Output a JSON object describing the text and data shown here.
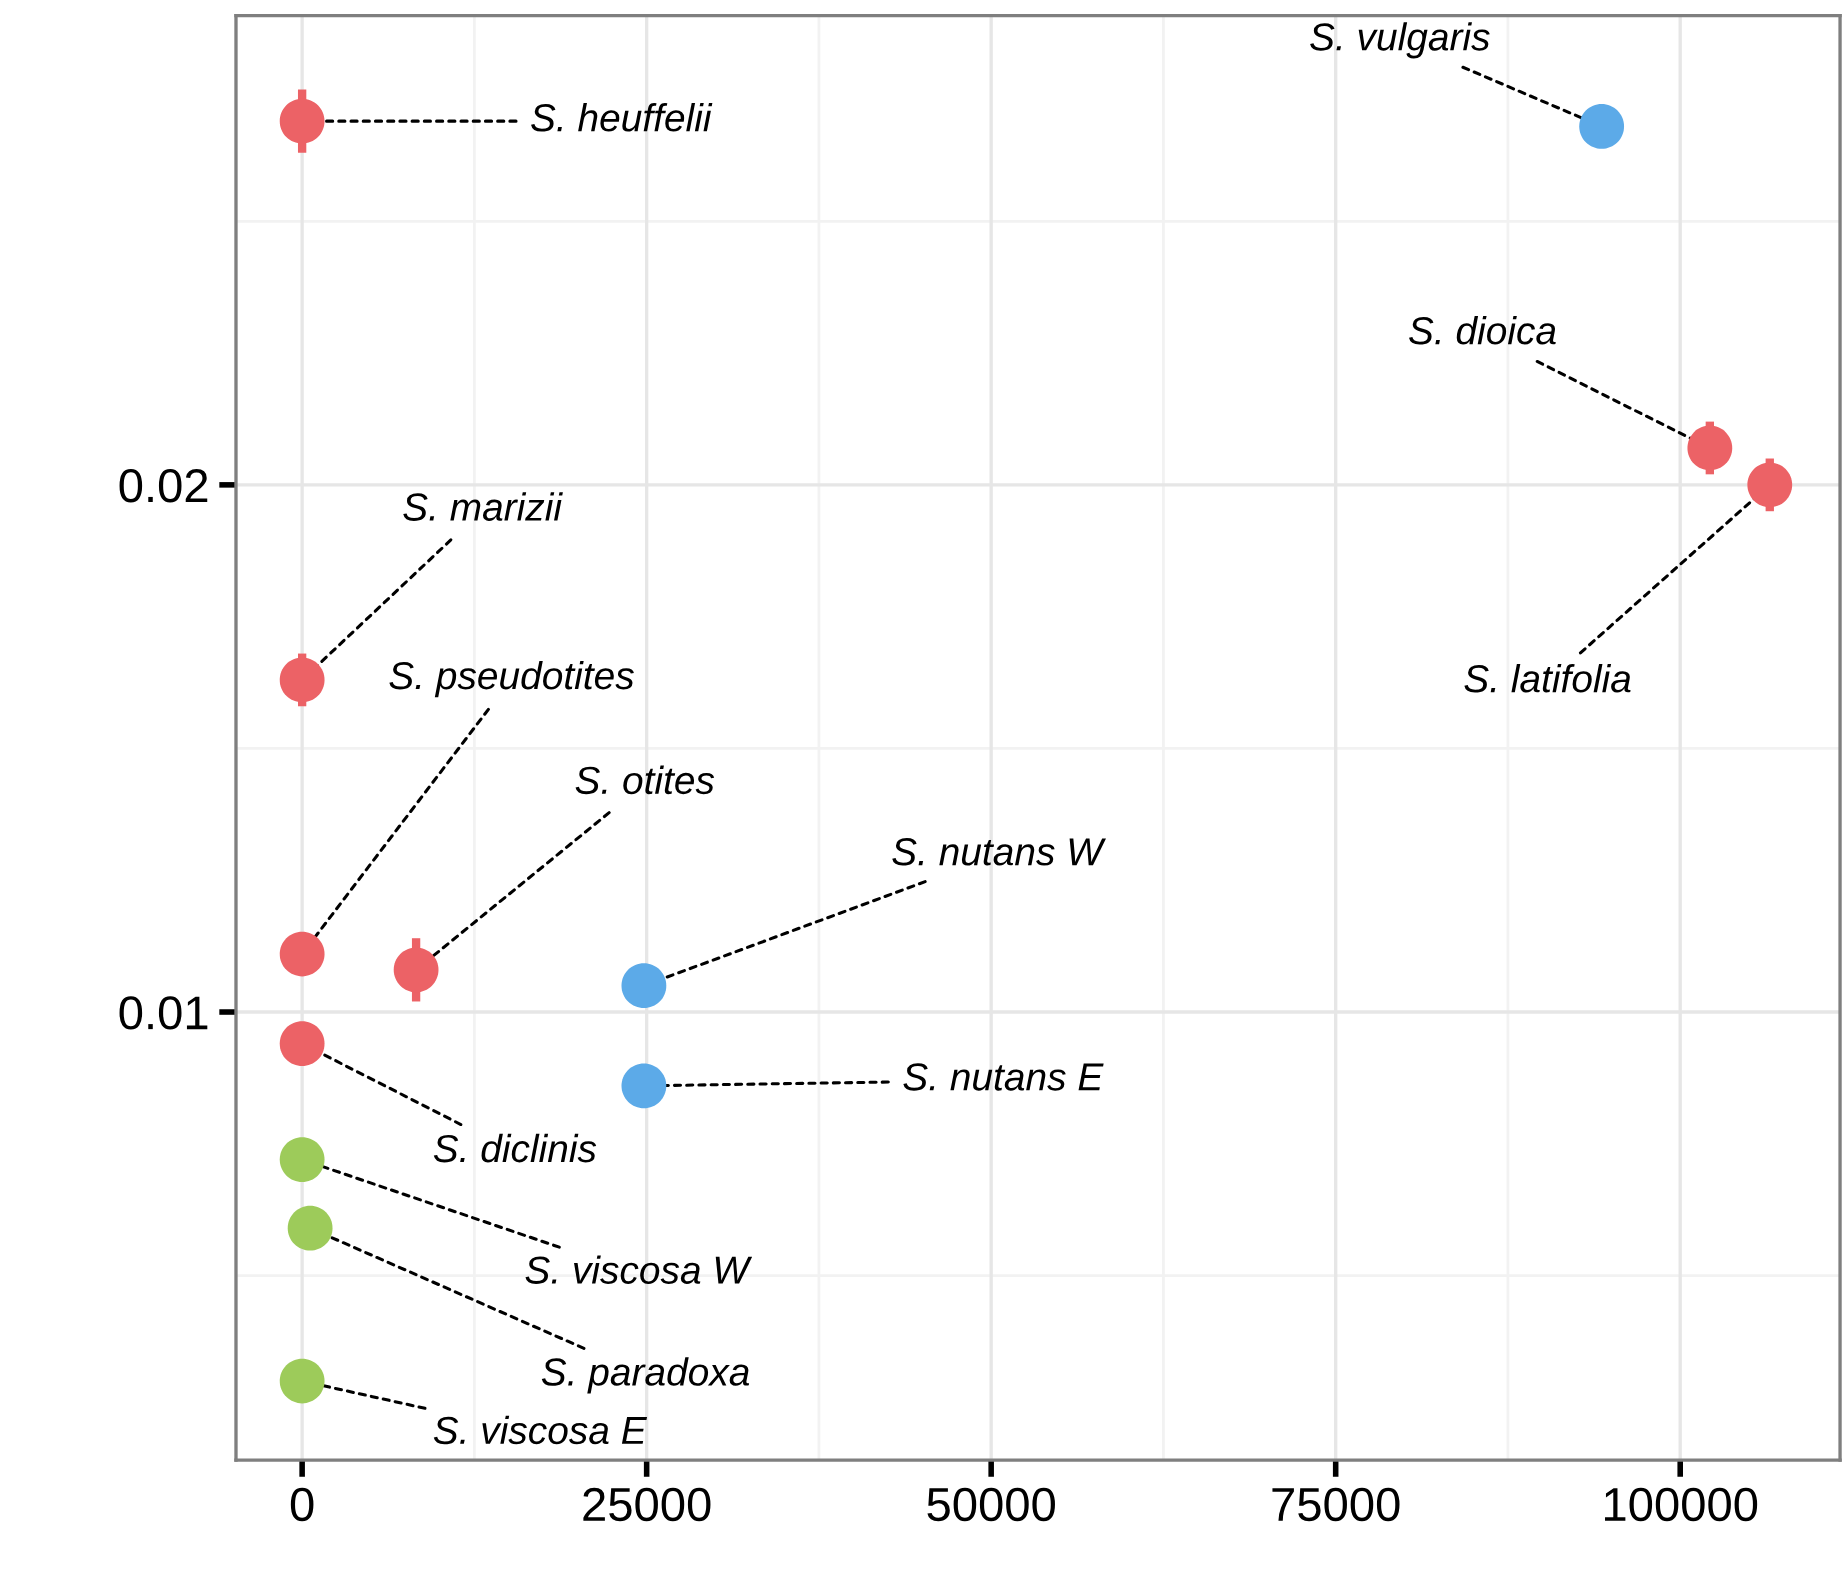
{
  "chart_data": {
    "type": "scatter",
    "x": [
      0,
      94300,
      102150,
      106500,
      0,
      0,
      8270,
      24800,
      24800,
      0,
      0,
      580,
      0
    ],
    "values": [
      0.0269,
      0.0268,
      0.0207,
      0.02,
      0.0163,
      0.0111,
      0.0108,
      0.0105,
      0.0086,
      0.0094,
      0.0072,
      0.0059,
      0.003
    ],
    "errors": [
      0.0006,
      0.0002,
      0.0005,
      0.0005,
      0.0005,
      0.0002,
      0.0006,
      null,
      null,
      0.0003,
      null,
      null,
      null
    ],
    "colors": [
      "#ec6266",
      "#5caae8",
      "#ec6266",
      "#ec6266",
      "#ec6266",
      "#ec6266",
      "#ec6266",
      "#5caae8",
      "#5caae8",
      "#ec6266",
      "#9dcb5a",
      "#9dcb5a",
      "#9dcb5a"
    ],
    "annotations": [
      {
        "text": "S. heuffelii",
        "x": 0,
        "y": 0.0269
      },
      {
        "text": "S. vulgaris",
        "x": 94300,
        "y": 0.0268
      },
      {
        "text": "S. dioica",
        "x": 102150,
        "y": 0.0207
      },
      {
        "text": "S. latifolia",
        "x": 106500,
        "y": 0.02
      },
      {
        "text": "S. marizii",
        "x": 0,
        "y": 0.0163
      },
      {
        "text": "S. pseudotites",
        "x": 0,
        "y": 0.0111
      },
      {
        "text": "S. otites",
        "x": 8270,
        "y": 0.0108
      },
      {
        "text": "S. nutans W",
        "x": 24800,
        "y": 0.0105
      },
      {
        "text": "S. nutans E",
        "x": 24800,
        "y": 0.0086
      },
      {
        "text": "S. diclinis",
        "x": 0,
        "y": 0.0094
      },
      {
        "text": "S. viscosa W",
        "x": 0,
        "y": 0.0072
      },
      {
        "text": "S. paradoxa",
        "x": 580,
        "y": 0.0059
      },
      {
        "text": "S. viscosa E",
        "x": 0,
        "y": 0.003
      }
    ],
    "xlim": [
      -4800,
      111600
    ],
    "ylim": [
      0.0015,
      0.0289
    ],
    "xticks": [
      0,
      25000,
      50000,
      75000,
      100000
    ],
    "yticks": [
      0.01,
      0.02
    ],
    "grid": true,
    "marker": "circle",
    "legend": false
  }
}
